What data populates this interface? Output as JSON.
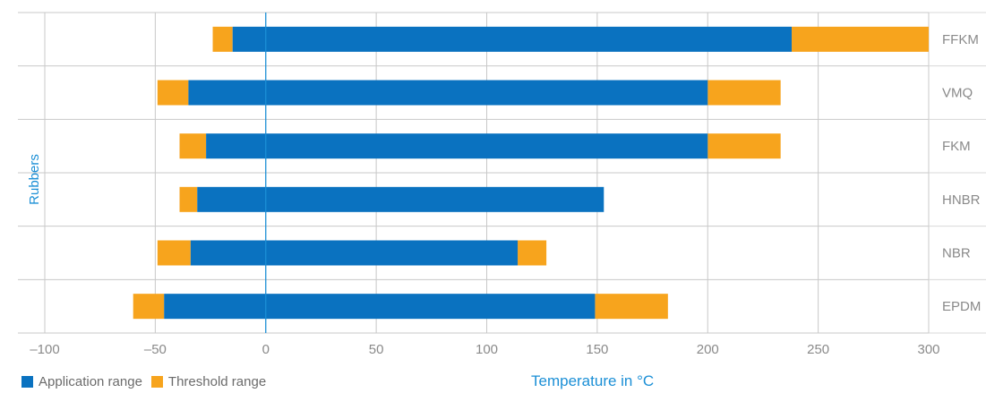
{
  "chart_data": {
    "type": "bar",
    "orientation": "horizontal",
    "stacked_ranges": true,
    "categories": [
      "FFKM",
      "VMQ",
      "FKM",
      "HNBR",
      "NBR",
      "EPDM"
    ],
    "series": [
      {
        "name": "Application range",
        "color": "#0a72c0",
        "ranges": [
          [
            -15,
            238
          ],
          [
            -35,
            200
          ],
          [
            -27,
            200
          ],
          [
            -31,
            153
          ],
          [
            -34,
            114
          ],
          [
            -46,
            149
          ]
        ]
      },
      {
        "name": "Threshold range",
        "color": "#f7a41d",
        "ranges": [
          [
            -24,
            -15
          ],
          [
            238,
            300
          ],
          [
            -49,
            -35
          ],
          [
            200,
            233
          ],
          [
            -39,
            -27
          ],
          [
            200,
            233
          ],
          [
            -39,
            -31
          ],
          [
            -49,
            -34
          ],
          [
            114,
            127
          ],
          [
            -60,
            -46
          ],
          [
            149,
            182
          ]
        ],
        "category_index": [
          0,
          0,
          1,
          1,
          2,
          2,
          3,
          4,
          4,
          5,
          5
        ]
      }
    ],
    "xlim": [
      -100,
      300
    ],
    "xticks": [
      -100,
      -50,
      0,
      50,
      100,
      150,
      200,
      250,
      300
    ],
    "xtick_labels": [
      "–100",
      "–50",
      "0",
      "50",
      "100",
      "150",
      "200",
      "250",
      "300"
    ],
    "xlabel": "Temperature in °C",
    "ylabel": "Rubbers",
    "grid": true,
    "legend_position": "bottom-left",
    "zero_line_color": "#1b8fd6",
    "grid_color": "#c8c8c8"
  }
}
